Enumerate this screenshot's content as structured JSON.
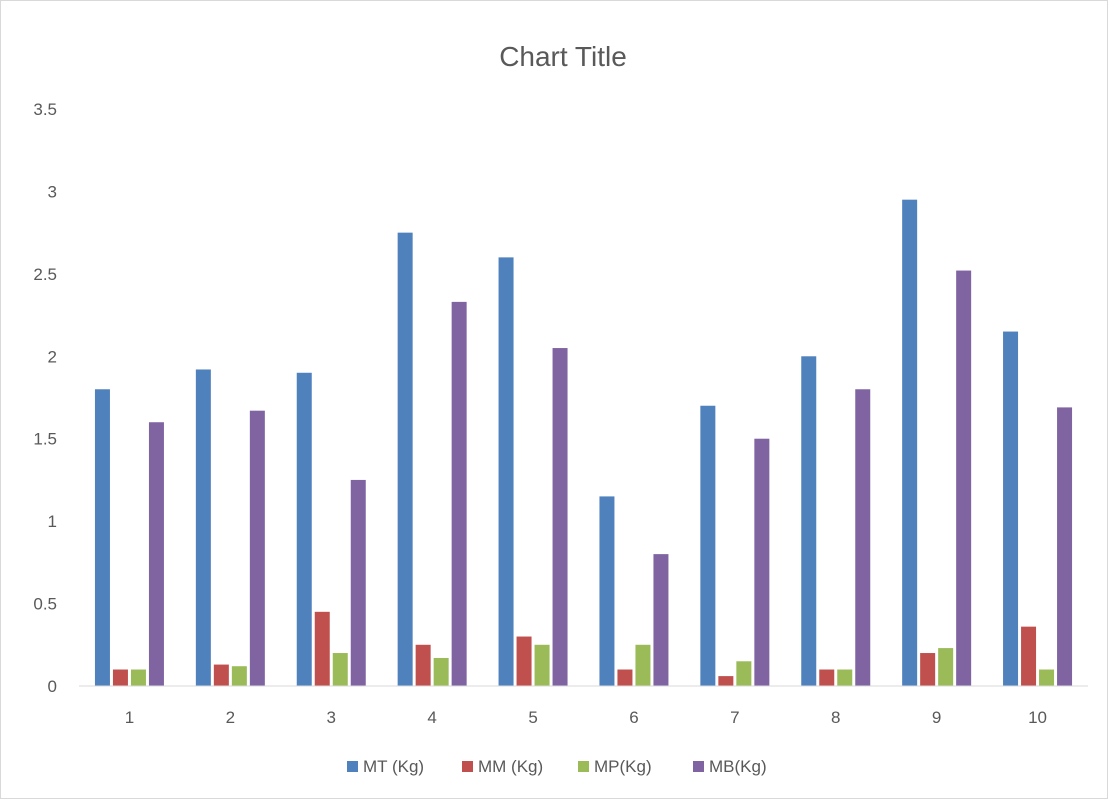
{
  "chart_data": {
    "type": "bar",
    "title": "Chart Title",
    "xlabel": "",
    "ylabel": "",
    "categories": [
      "1",
      "2",
      "3",
      "4",
      "5",
      "6",
      "7",
      "8",
      "9",
      "10"
    ],
    "ylim": [
      0,
      3.5
    ],
    "yticks": [
      "0",
      "0.5",
      "1",
      "1.5",
      "2",
      "2.5",
      "3",
      "3.5"
    ],
    "grid": false,
    "legend_position": "bottom",
    "series": [
      {
        "name": "MT (Kg)",
        "color": "#4f81bd",
        "values": [
          1.8,
          1.92,
          1.9,
          2.75,
          2.6,
          1.15,
          1.7,
          2.0,
          2.95,
          2.15
        ]
      },
      {
        "name": "MM (Kg)",
        "color": "#c0504d",
        "values": [
          0.1,
          0.13,
          0.45,
          0.25,
          0.3,
          0.1,
          0.06,
          0.1,
          0.2,
          0.36
        ]
      },
      {
        "name": "MP(Kg)",
        "color": "#9bbb59",
        "values": [
          0.1,
          0.12,
          0.2,
          0.17,
          0.25,
          0.25,
          0.15,
          0.1,
          0.23,
          0.1
        ]
      },
      {
        "name": "MB(Kg)",
        "color": "#8064a2",
        "values": [
          1.6,
          1.67,
          1.25,
          2.33,
          2.05,
          0.8,
          1.5,
          1.8,
          2.52,
          1.69
        ]
      }
    ]
  }
}
